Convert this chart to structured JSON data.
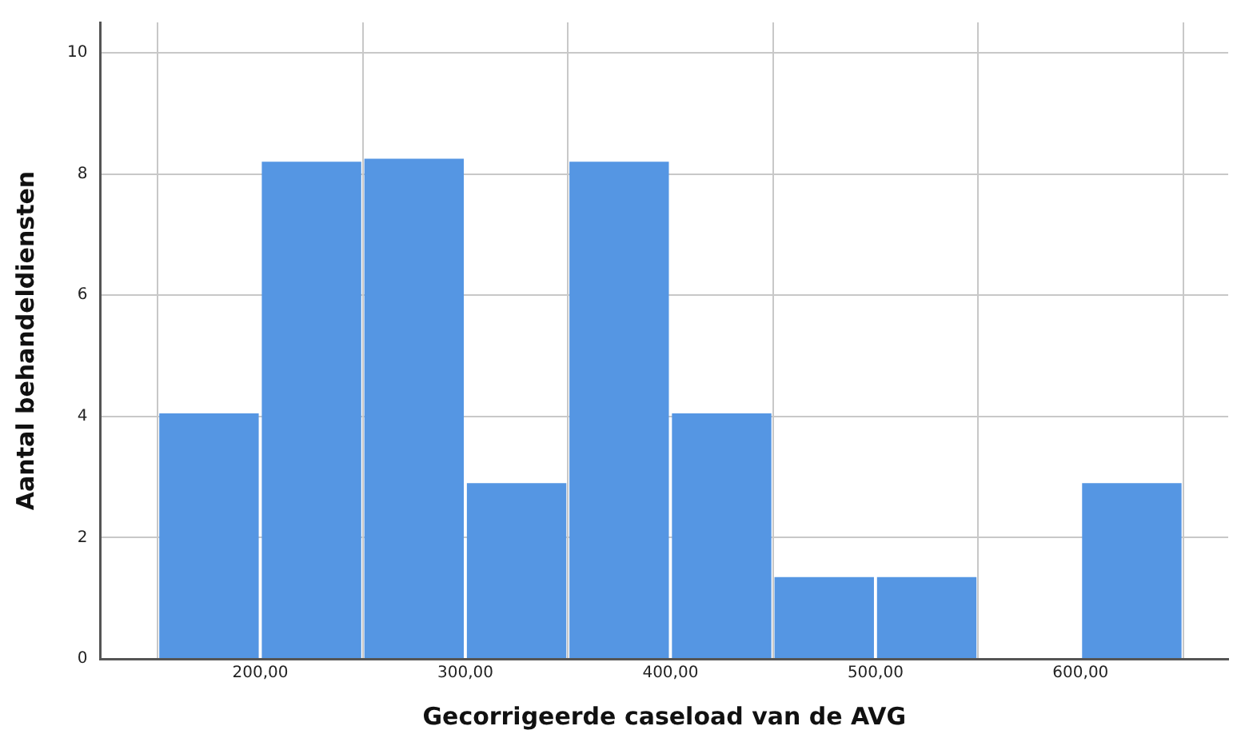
{
  "chart_data": {
    "type": "histogram",
    "xlabel": "Gecorrigeerde caseload van de AVG",
    "ylabel": "Aantal behandeldiensten",
    "bins": [
      150,
      200,
      250,
      300,
      350,
      400,
      450,
      500,
      550,
      600,
      650
    ],
    "values": [
      4.05,
      8.2,
      8.25,
      2.9,
      8.2,
      4.05,
      1.35,
      1.35,
      0,
      2.9
    ],
    "color": "#5596e3",
    "xlim": [
      122,
      672
    ],
    "ylim": [
      0,
      10.5
    ],
    "xticks": [
      {
        "value": 200,
        "label": "200,00"
      },
      {
        "value": 300,
        "label": "300,00"
      },
      {
        "value": 400,
        "label": "400,00"
      },
      {
        "value": 500,
        "label": "500,00"
      },
      {
        "value": 600,
        "label": "600,00"
      }
    ],
    "yticks": [
      0,
      2,
      4,
      6,
      8,
      10
    ],
    "grid": true
  }
}
